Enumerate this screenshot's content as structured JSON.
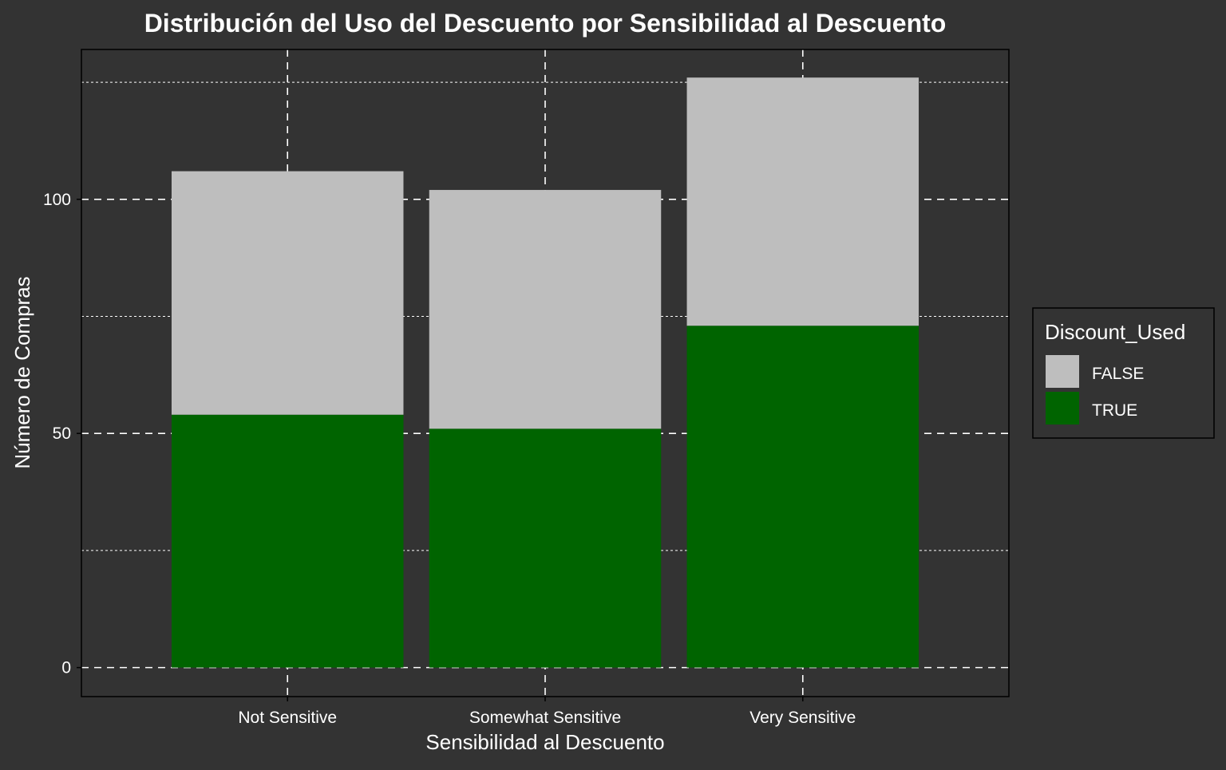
{
  "chart_data": {
    "type": "bar",
    "stacked": true,
    "title": "Distribución del Uso del Descuento por Sensibilidad al Descuento",
    "xlabel": "Sensibilidad al Descuento",
    "ylabel": "Número de Compras",
    "categories": [
      "Not Sensitive",
      "Somewhat Sensitive",
      "Very Sensitive"
    ],
    "series": [
      {
        "name": "TRUE",
        "values": [
          54,
          51,
          73
        ],
        "color": "#006400"
      },
      {
        "name": "FALSE",
        "values": [
          52,
          51,
          53
        ],
        "color": "#BEBEBE"
      }
    ],
    "ylim": [
      -6.2,
      132
    ],
    "yticks": [
      0,
      50,
      100
    ],
    "ytick_labels": [
      "0",
      "50",
      "100"
    ],
    "legend": {
      "title": "Discount_Used",
      "placement": "right",
      "entries": [
        "FALSE",
        "TRUE"
      ]
    },
    "grid": true,
    "background": "#333333",
    "grid_color": "#ffffff"
  }
}
